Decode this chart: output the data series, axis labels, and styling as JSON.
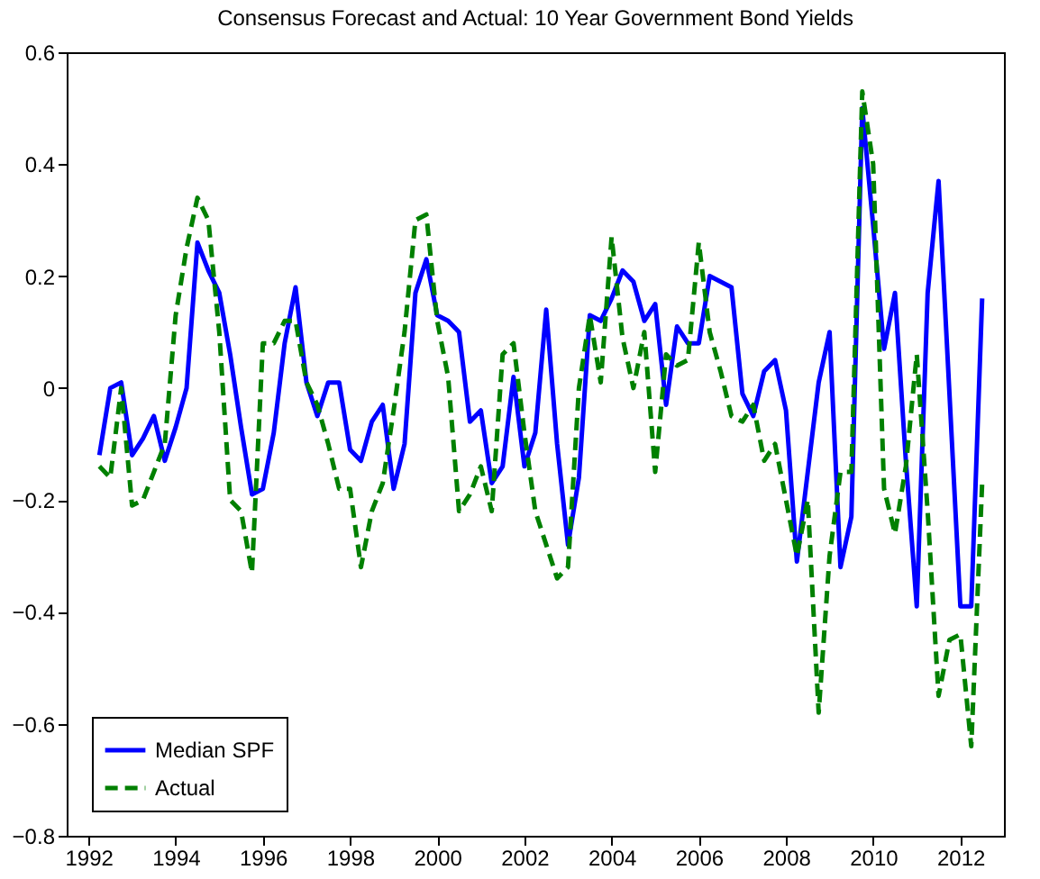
{
  "chart_data": {
    "type": "line",
    "title": "Consensus Forecast and Actual: 10 Year Government Bond Yields",
    "x": [
      1992.25,
      1992.5,
      1992.75,
      1993,
      1993.25,
      1993.5,
      1993.75,
      1994,
      1994.25,
      1994.5,
      1994.75,
      1995,
      1995.25,
      1995.5,
      1995.75,
      1996,
      1996.25,
      1996.5,
      1996.75,
      1997,
      1997.25,
      1997.5,
      1997.75,
      1998,
      1998.25,
      1998.5,
      1998.75,
      1999,
      1999.25,
      1999.5,
      1999.75,
      2000,
      2000.25,
      2000.5,
      2000.75,
      2001,
      2001.25,
      2001.5,
      2001.75,
      2002,
      2002.25,
      2002.5,
      2002.75,
      2003,
      2003.25,
      2003.5,
      2003.75,
      2004,
      2004.25,
      2004.5,
      2004.75,
      2005,
      2005.25,
      2005.5,
      2005.75,
      2006,
      2006.25,
      2006.5,
      2006.75,
      2007,
      2007.25,
      2007.5,
      2007.75,
      2008,
      2008.25,
      2008.5,
      2008.75,
      2009,
      2009.25,
      2009.5,
      2009.75,
      2010,
      2010.25,
      2010.5,
      2010.75,
      2011,
      2011.25,
      2011.5,
      2011.75,
      2012,
      2012.25,
      2012.5
    ],
    "series": [
      {
        "name": "Median SPF",
        "color": "#0000ff",
        "line_style": "solid",
        "values": [
          -0.12,
          0.0,
          0.01,
          -0.12,
          -0.09,
          -0.05,
          -0.13,
          -0.07,
          0.0,
          0.26,
          0.21,
          0.17,
          0.06,
          -0.07,
          -0.19,
          -0.18,
          -0.08,
          0.08,
          0.18,
          0.01,
          -0.05,
          0.01,
          0.01,
          -0.11,
          -0.13,
          -0.06,
          -0.03,
          -0.18,
          -0.1,
          0.17,
          0.23,
          0.13,
          0.12,
          0.1,
          -0.06,
          -0.04,
          -0.17,
          -0.14,
          0.02,
          -0.14,
          -0.08,
          0.14,
          -0.1,
          -0.28,
          -0.16,
          0.13,
          0.12,
          0.16,
          0.21,
          0.19,
          0.12,
          0.15,
          -0.03,
          0.11,
          0.08,
          0.08,
          0.2,
          0.19,
          0.18,
          -0.01,
          -0.05,
          0.03,
          0.05,
          -0.04,
          -0.31,
          -0.15,
          0.01,
          0.1,
          -0.32,
          -0.23,
          0.5,
          0.29,
          0.07,
          0.17,
          -0.13,
          -0.39,
          0.17,
          0.37,
          -0.01,
          -0.39,
          -0.39,
          0.16
        ]
      },
      {
        "name": "Actual",
        "color": "#008000",
        "line_style": "dashed",
        "values": [
          -0.14,
          -0.16,
          0.0,
          -0.21,
          -0.2,
          -0.15,
          -0.1,
          0.13,
          0.25,
          0.34,
          0.3,
          0.1,
          -0.2,
          -0.22,
          -0.33,
          0.08,
          0.08,
          0.12,
          0.12,
          0.01,
          -0.03,
          -0.1,
          -0.18,
          -0.18,
          -0.32,
          -0.22,
          -0.17,
          -0.04,
          0.1,
          0.3,
          0.31,
          0.12,
          0.02,
          -0.22,
          -0.19,
          -0.14,
          -0.22,
          0.06,
          0.08,
          -0.08,
          -0.22,
          -0.28,
          -0.34,
          -0.32,
          0.0,
          0.13,
          0.01,
          0.27,
          0.09,
          0.0,
          0.1,
          -0.15,
          0.06,
          0.04,
          0.05,
          0.26,
          0.1,
          0.03,
          -0.05,
          -0.06,
          -0.03,
          -0.13,
          -0.1,
          -0.2,
          -0.3,
          -0.2,
          -0.58,
          -0.3,
          -0.15,
          -0.15,
          0.53,
          0.4,
          -0.18,
          -0.26,
          -0.14,
          0.06,
          -0.22,
          -0.55,
          -0.45,
          -0.44,
          -0.64,
          -0.17
        ]
      }
    ],
    "xlim": [
      1991.5,
      2013
    ],
    "xticks": [
      1992,
      1994,
      1996,
      1998,
      2000,
      2002,
      2004,
      2006,
      2008,
      2010,
      2012
    ],
    "ylim": [
      -0.8,
      0.6
    ],
    "yticks": [
      -0.8,
      -0.6,
      -0.4,
      -0.2,
      0,
      0.2,
      0.4,
      0.6
    ],
    "grid": false,
    "legend": "bottom left"
  }
}
